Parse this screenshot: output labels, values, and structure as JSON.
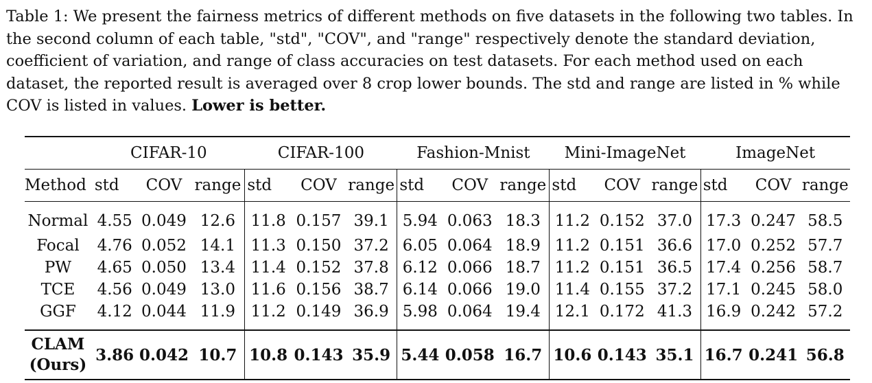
{
  "caption": {
    "text": "Table 1: We present the fairness metrics of different methods on five datasets in the following two tables. In the second column of each table, \"std\", \"COV\", and \"range\" respectively denote the standard deviation, coefficient of variation, and range of class accuracies on test datasets. For each method used on each dataset, the reported result is averaged over 8 crop lower bounds. The std and range are listed in % while COV is listed in values. ",
    "emphasis": "Lower is better."
  },
  "table": {
    "datasets": [
      "CIFAR-10",
      "CIFAR-100",
      "Fashion-Mnist",
      "Mini-ImageNet",
      "ImageNet"
    ],
    "method_header": "Method",
    "metric_headers": [
      "std",
      "COV",
      "range"
    ],
    "rows": [
      {
        "method": "Normal",
        "values": [
          "4.55",
          "0.049",
          "12.6",
          "11.8",
          "0.157",
          "39.1",
          "5.94",
          "0.063",
          "18.3",
          "11.2",
          "0.152",
          "37.0",
          "17.3",
          "0.247",
          "58.5"
        ]
      },
      {
        "method": "Focal",
        "values": [
          "4.76",
          "0.052",
          "14.1",
          "11.3",
          "0.150",
          "37.2",
          "6.05",
          "0.064",
          "18.9",
          "11.2",
          "0.151",
          "36.6",
          "17.0",
          "0.252",
          "57.7"
        ]
      },
      {
        "method": "PW",
        "values": [
          "4.65",
          "0.050",
          "13.4",
          "11.4",
          "0.152",
          "37.8",
          "6.12",
          "0.066",
          "18.7",
          "11.2",
          "0.151",
          "36.5",
          "17.4",
          "0.256",
          "58.7"
        ]
      },
      {
        "method": "TCE",
        "values": [
          "4.56",
          "0.049",
          "13.0",
          "11.6",
          "0.156",
          "38.7",
          "6.14",
          "0.066",
          "19.0",
          "11.4",
          "0.155",
          "37.2",
          "17.1",
          "0.245",
          "58.0"
        ]
      },
      {
        "method": "GGF",
        "values": [
          "4.12",
          "0.044",
          "11.9",
          "11.2",
          "0.149",
          "36.9",
          "5.98",
          "0.064",
          "19.4",
          "12.1",
          "0.172",
          "41.3",
          "16.9",
          "0.242",
          "57.2"
        ]
      }
    ],
    "ours": {
      "method_line1": "CLAM",
      "method_line2": "(Ours)",
      "values": [
        "3.86",
        "0.042",
        "10.7",
        "10.8",
        "0.143",
        "35.9",
        "5.44",
        "0.058",
        "16.7",
        "10.6",
        "0.143",
        "35.1",
        "16.7",
        "0.241",
        "56.8"
      ]
    }
  }
}
